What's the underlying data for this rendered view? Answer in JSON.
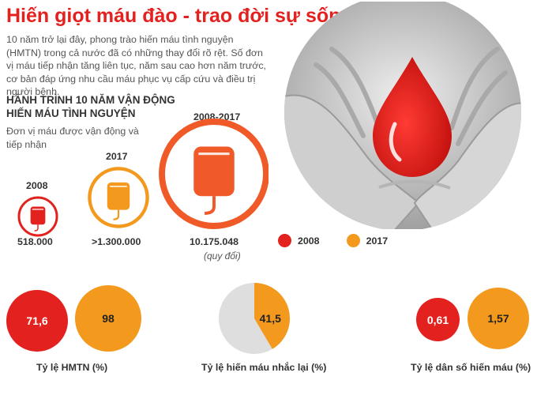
{
  "title": "Hiến giọt máu đào - trao đời sự sống",
  "intro": "10 năm trở lại đây, phong trào hiến máu tình nguyện (HMTN) trong cả nước đã có những thay đổi rõ rệt. Số đơn vị máu tiếp nhận tăng liên tục, năm sau cao hơn năm trước, cơ bản đáp ứng nhu cầu máu phục vụ cấp cứu và điều trị người bệnh.",
  "section_title": "HÀNH TRÌNH 10 NĂM VẬN ĐỘNG HIẾN MÁU TÌNH NGUYỆN",
  "section_subtitle": "Đơn vị máu được vận động và tiếp nhận",
  "colors": {
    "y2008": "#e3211f",
    "y2017": "#f39a1e",
    "total": "#f05a28",
    "repeat_bg": "#dedede"
  },
  "legend": [
    {
      "label": "2008",
      "color": "#e3211f"
    },
    {
      "label": "2017",
      "color": "#f39a1e"
    }
  ],
  "blood_bag_icons": [
    "blood-bag-icon",
    "blood-drop-icon",
    "hands-photo"
  ],
  "chart_data": [
    {
      "type": "bubble",
      "categories": [
        "2008",
        "2017",
        "2008-2017"
      ],
      "values": [
        518000,
        1300000,
        10175048
      ],
      "value_labels": [
        "518.000",
        ">1.300.000",
        "10.175.048"
      ],
      "notes": [
        "",
        "",
        "(quy đổi)"
      ]
    },
    {
      "type": "bubble",
      "label": "Tỷ lệ HMTN (%)",
      "series": [
        {
          "name": "2008",
          "value": 71.6,
          "text": "71,6"
        },
        {
          "name": "2017",
          "value": 98,
          "text": "98"
        }
      ]
    },
    {
      "type": "pie",
      "label": "Tỷ lệ hiến máu nhắc lại (%)",
      "value": 41.5,
      "text": "41,5"
    },
    {
      "type": "bubble",
      "label": "Tỷ lệ dân số hiến máu (%)",
      "series": [
        {
          "name": "2008",
          "value": 0.61,
          "text": "0,61"
        },
        {
          "name": "2017",
          "value": 1.57,
          "text": "1,57"
        }
      ]
    }
  ]
}
